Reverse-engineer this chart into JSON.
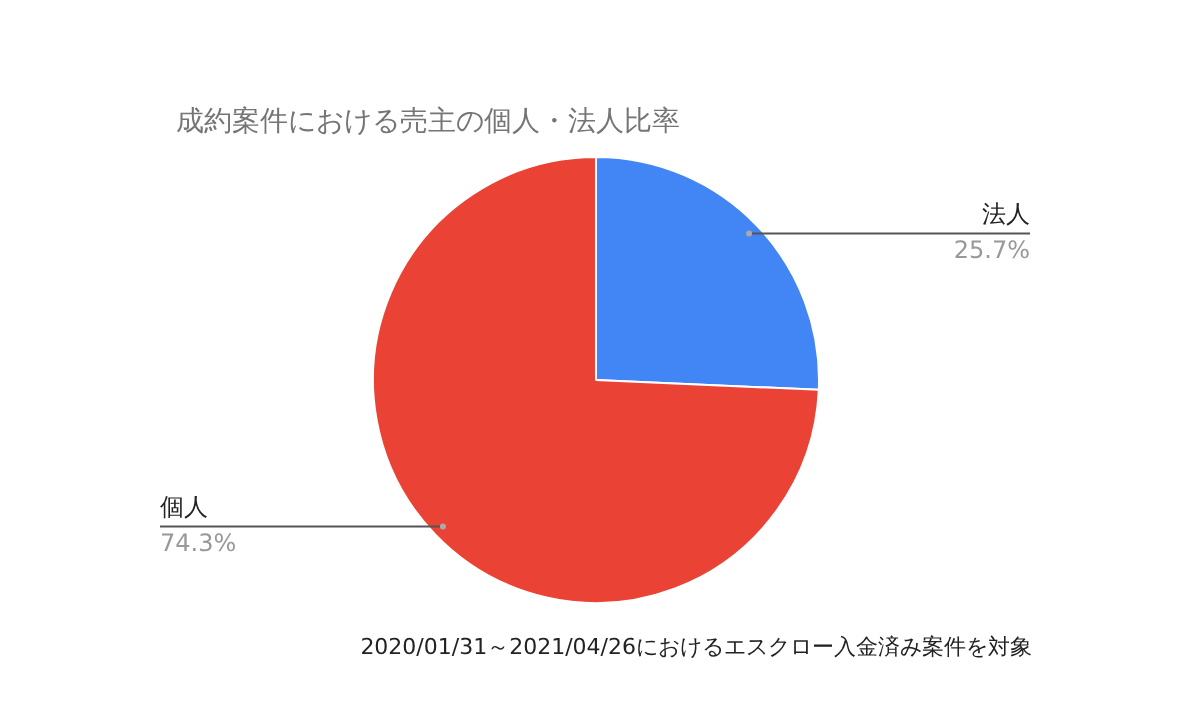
{
  "chart_data": {
    "type": "pie",
    "title": "成約案件における売主の個人・法人比率",
    "categories": [
      "法人",
      "個人"
    ],
    "values": [
      25.7,
      74.3
    ],
    "colors": [
      "#4285f4",
      "#ea4335"
    ],
    "value_labels": [
      "25.7%",
      "74.3%"
    ],
    "legend": false,
    "annotations": [
      "2020/01/31～2021/04/26におけるエスクロー入金済み案件を対象"
    ]
  }
}
